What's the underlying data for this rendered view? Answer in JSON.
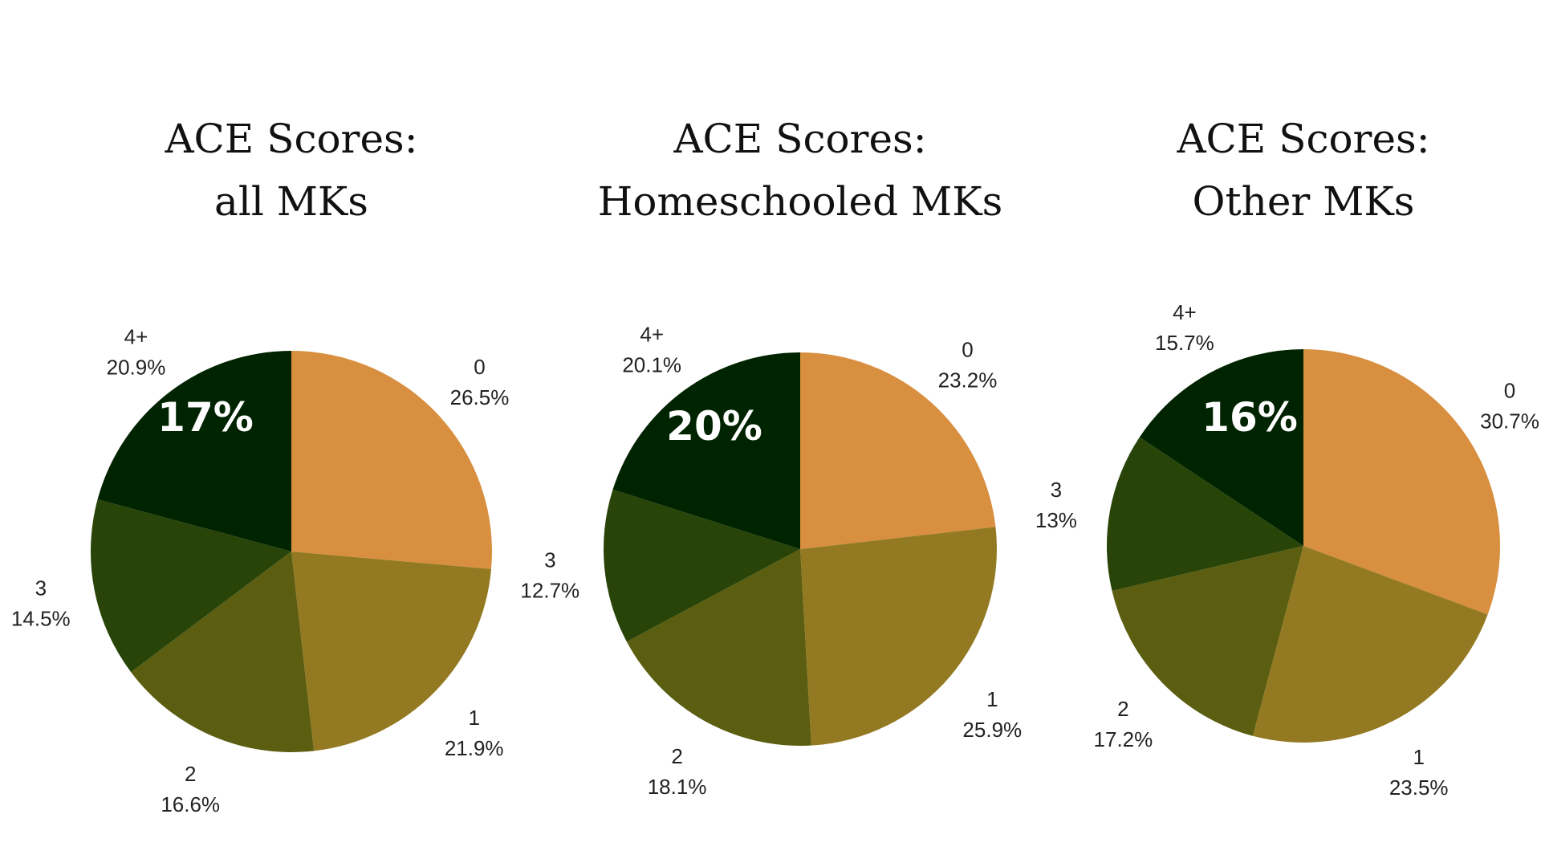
{
  "colors": {
    "0": "#d88f3f",
    "1": "#937a22",
    "2": "#5b5e10",
    "3": "#284409",
    "4+": "#002300"
  },
  "chart_data": [
    {
      "type": "pie",
      "title": "ACE Scores:",
      "subtitle": "all MKs",
      "overlay_value": "17%",
      "slices": [
        {
          "name": "0",
          "value": 26.5,
          "label": "26.5%"
        },
        {
          "name": "1",
          "value": 21.9,
          "label": "21.9%"
        },
        {
          "name": "2",
          "value": 16.6,
          "label": "16.6%"
        },
        {
          "name": "3",
          "value": 14.5,
          "label": "14.5%"
        },
        {
          "name": "4+",
          "value": 20.9,
          "label": "20.9%"
        }
      ]
    },
    {
      "type": "pie",
      "title": "ACE Scores:",
      "subtitle": "Homeschooled MKs",
      "overlay_value": "20%",
      "slices": [
        {
          "name": "0",
          "value": 23.2,
          "label": "23.2%"
        },
        {
          "name": "1",
          "value": 25.9,
          "label": "25.9%"
        },
        {
          "name": "2",
          "value": 18.1,
          "label": "18.1%"
        },
        {
          "name": "3",
          "value": 12.7,
          "label": "12.7%"
        },
        {
          "name": "4+",
          "value": 20.1,
          "label": "20.1%"
        }
      ]
    },
    {
      "type": "pie",
      "title": "ACE Scores:",
      "subtitle": "Other MKs",
      "overlay_value": "16%",
      "slices": [
        {
          "name": "0",
          "value": 30.7,
          "label": "30.7%"
        },
        {
          "name": "1",
          "value": 23.5,
          "label": "23.5%"
        },
        {
          "name": "2",
          "value": 17.2,
          "label": "17.2%"
        },
        {
          "name": "3",
          "value": 13,
          "label": "13%"
        },
        {
          "name": "4+",
          "value": 15.7,
          "label": "15.7%"
        }
      ]
    }
  ]
}
